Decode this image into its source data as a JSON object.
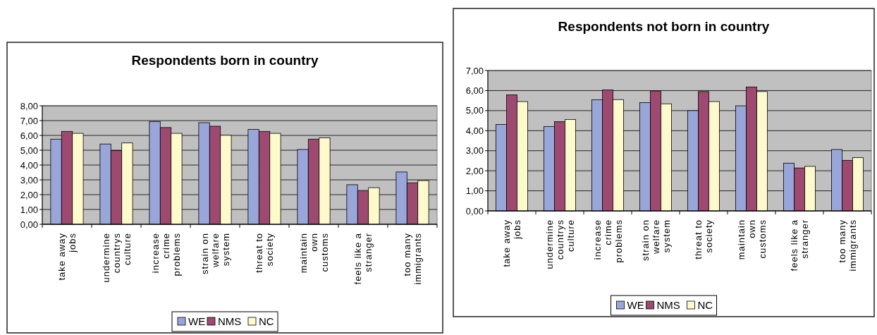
{
  "chart_data": [
    {
      "type": "bar",
      "title": "Respondents born in country",
      "categories": [
        "take away\njobs",
        "undermine\ncountrys\nculture",
        "increase\ncrime\nproblems",
        "strain on\nwelfare\nsystem",
        "threat to\nsociety",
        "maintain\nown\ncustoms",
        "feels like a\nstranger",
        "too many\nimmigrants"
      ],
      "series": [
        {
          "name": "WE",
          "color": "#99a6da",
          "values": [
            5.75,
            5.42,
            6.94,
            6.86,
            6.4,
            5.05,
            2.67,
            3.53
          ]
        },
        {
          "name": "NMS",
          "color": "#9e4a70",
          "values": [
            6.27,
            4.97,
            6.53,
            6.62,
            6.27,
            5.75,
            2.28,
            2.8
          ]
        },
        {
          "name": "NC",
          "color": "#fffacc",
          "values": [
            6.14,
            5.49,
            6.14,
            6.01,
            6.14,
            5.83,
            2.47,
            2.95
          ]
        }
      ],
      "ylim": [
        0,
        8
      ],
      "yticks": [
        {
          "value": 0,
          "label": "0,00"
        },
        {
          "value": 1,
          "label": "1,00"
        },
        {
          "value": 2,
          "label": "2,00"
        },
        {
          "value": 3,
          "label": "3,00"
        },
        {
          "value": 4,
          "label": "4,00"
        },
        {
          "value": 5,
          "label": "5,00"
        },
        {
          "value": 6,
          "label": "6,00"
        },
        {
          "value": 7,
          "label": "7,00"
        },
        {
          "value": 8,
          "label": "8,00"
        }
      ],
      "grid": "y",
      "legend": "bottom"
    },
    {
      "type": "bar",
      "title": "Respondents not born in country",
      "categories": [
        "take away\njobs",
        "undermine\ncountrys\nculture",
        "increase\ncrime\nproblems",
        "strain on\nwelfare\nsystem",
        "threat to\nsociety",
        "maintain\nown\ncustoms",
        "feels like a\nstranger",
        "too many\nimmigrants"
      ],
      "series": [
        {
          "name": "WE",
          "color": "#99a6da",
          "values": [
            4.31,
            4.21,
            5.54,
            5.4,
            5.0,
            5.24,
            2.38,
            3.06
          ]
        },
        {
          "name": "NMS",
          "color": "#9e4a70",
          "values": [
            5.79,
            4.45,
            6.03,
            5.98,
            5.95,
            6.18,
            2.14,
            2.52
          ]
        },
        {
          "name": "NC",
          "color": "#fffacc",
          "values": [
            5.45,
            4.56,
            5.55,
            5.34,
            5.45,
            5.95,
            2.22,
            2.66
          ]
        }
      ],
      "ylim": [
        0,
        7
      ],
      "yticks": [
        {
          "value": 0,
          "label": "0,00"
        },
        {
          "value": 1,
          "label": "1,00"
        },
        {
          "value": 2,
          "label": "2,00"
        },
        {
          "value": 3,
          "label": "3,00"
        },
        {
          "value": 4,
          "label": "4,00"
        },
        {
          "value": 5,
          "label": "5,00"
        },
        {
          "value": 6,
          "label": "6,00"
        },
        {
          "value": 7,
          "label": "7,00"
        }
      ],
      "grid": "y",
      "legend": "bottom"
    }
  ]
}
